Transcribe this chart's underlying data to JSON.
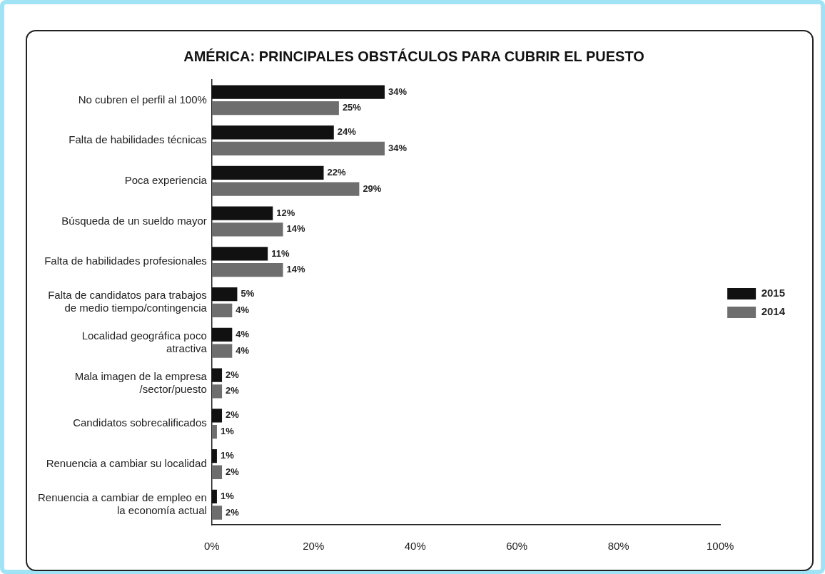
{
  "chart_data": {
    "type": "bar",
    "orientation": "horizontal",
    "title": "AMÉRICA: PRINCIPALES OBSTÁCULOS PARA CUBRIR EL PUESTO",
    "categories": [
      "No cubren el perfil al 100%",
      "Falta de habilidades técnicas",
      "Poca experiencia",
      "Búsqueda de un sueldo mayor",
      "Falta de habilidades profesionales",
      "Falta de candidatos para trabajos de medio tiempo/contingencia",
      "Localidad geográfica poco atractiva",
      "Mala imagen de la empresa /sector/puesto",
      "Candidatos sobrecalificados",
      "Renuencia a cambiar su localidad",
      "Renuencia a cambiar de empleo en la economía actual"
    ],
    "series": [
      {
        "name": "2015",
        "color": "#111111",
        "values": [
          34,
          24,
          22,
          12,
          11,
          5,
          4,
          2,
          2,
          1,
          1
        ],
        "value_labels": [
          "34%",
          "24%",
          "22%",
          "12%",
          "11%",
          "5%",
          "4%",
          "2%",
          "2%",
          "1%",
          "1%"
        ]
      },
      {
        "name": "2014",
        "color": "#6e6e6e",
        "values": [
          25,
          34,
          29,
          14,
          14,
          4,
          4,
          2,
          1,
          2,
          2
        ],
        "value_labels": [
          "25%",
          "34%",
          "29%",
          "14%",
          "14%",
          "4%",
          "4%",
          "2%",
          "1%",
          "2%",
          "2%"
        ]
      }
    ],
    "xlim": [
      0,
      100
    ],
    "xticks": [
      {
        "value": 0,
        "label": "0%"
      },
      {
        "value": 20,
        "label": "20%"
      },
      {
        "value": 40,
        "label": "40%"
      },
      {
        "value": 60,
        "label": "60%"
      },
      {
        "value": 80,
        "label": "80%"
      },
      {
        "value": 100,
        "label": "100%"
      }
    ],
    "grid": false,
    "legend": "right"
  }
}
